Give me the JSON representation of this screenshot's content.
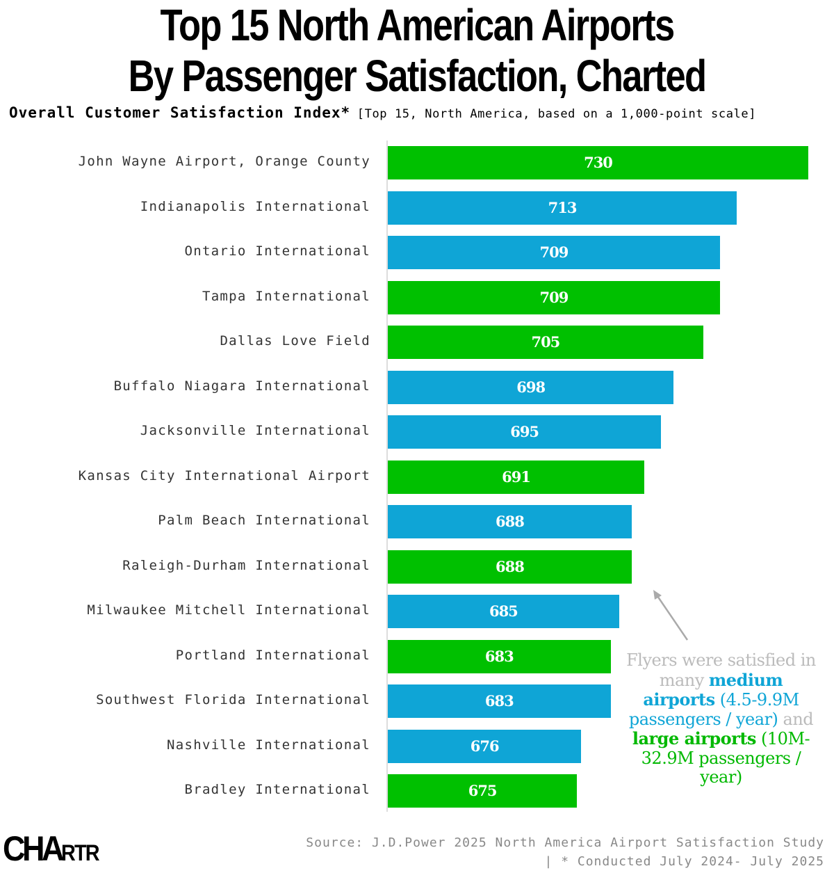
{
  "title_line1": "Top 15 North American Airports",
  "title_line2": "By Passenger Satisfaction, Charted",
  "subtitle_bold": "Overall Customer Satisfaction Index*",
  "subtitle_rest": "[Top 15, North America, based on a 1,000-point scale]",
  "colors": {
    "medium": "#0fa5d6",
    "large": "#00c000"
  },
  "chart_data": {
    "type": "bar",
    "orientation": "horizontal",
    "xlim": [
      630,
      730
    ],
    "categories": [
      "John Wayne Airport, Orange County",
      "Indianapolis International",
      "Ontario International",
      "Tampa International",
      "Dallas Love Field",
      "Buffalo Niagara International",
      "Jacksonville International",
      "Kansas City International Airport",
      "Palm Beach International",
      "Raleigh-Durham International",
      "Milwaukee Mitchell International",
      "Portland International",
      "Southwest Florida International",
      "Nashville International",
      "Bradley International"
    ],
    "values": [
      730,
      713,
      709,
      709,
      705,
      698,
      695,
      691,
      688,
      688,
      685,
      683,
      683,
      676,
      675
    ],
    "size": [
      "large",
      "medium",
      "medium",
      "large",
      "large",
      "medium",
      "medium",
      "large",
      "medium",
      "large",
      "medium",
      "large",
      "medium",
      "medium",
      "large"
    ]
  },
  "annotation": {
    "p1": "Flyers were satisfied in many ",
    "p2": "medium airports",
    "p3": " (4.5-9.9M passengers / year)",
    "p4": " and ",
    "p5": "large airports",
    "p6": " (10M-32.9M passengers / year)"
  },
  "source_line1": "Source: J.D.Power 2025 North America Airport Satisfaction Study",
  "source_line2": "| * Conducted July 2024- July 2025",
  "logo_text": "CHARTR",
  "logo_main": "CHA",
  "logo_small": "RTR"
}
